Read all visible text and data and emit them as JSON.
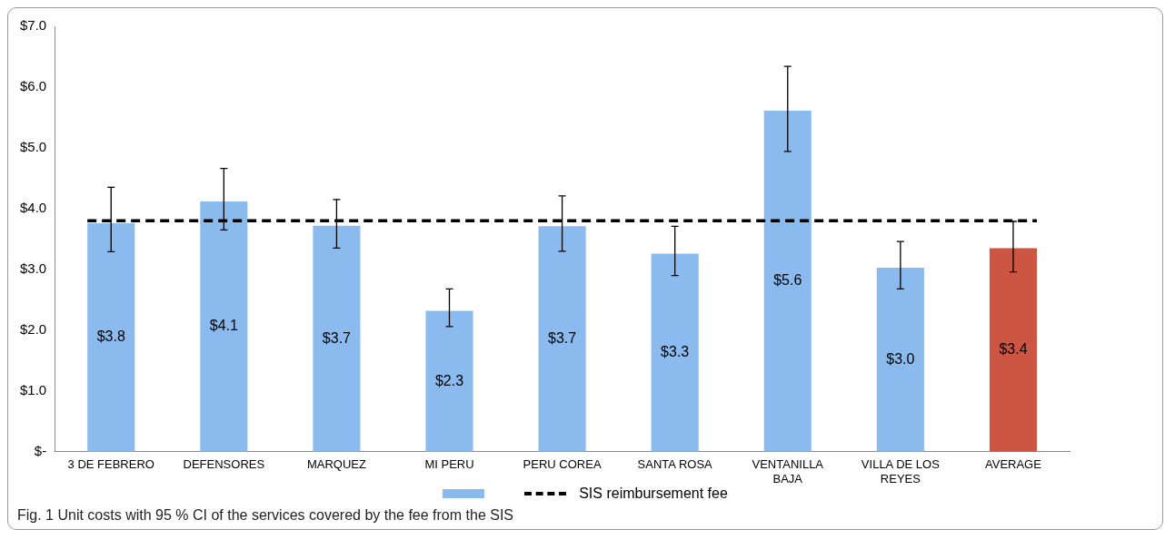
{
  "chart_data": {
    "type": "bar",
    "title": "Fig. 1  Unit costs with 95 % CI of the services covered by the fee from the SIS",
    "categories": [
      "3 DE FEBRERO",
      "DEFENSORES",
      "MARQUEZ",
      "MI PERU",
      "PERU COREA",
      "SANTA ROSA",
      "VENTANILLA BAJA",
      "VILLA DE LOS REYES",
      "AVERAGE"
    ],
    "values": [
      3.76,
      4.12,
      3.72,
      2.32,
      3.71,
      3.26,
      5.61,
      3.03,
      3.35
    ],
    "colors": [
      "#8bbbee",
      "#8bbbee",
      "#8bbbee",
      "#8bbbee",
      "#8bbbee",
      "#8bbbee",
      "#8bbbee",
      "#8bbbee",
      "#cc5544"
    ],
    "value_labels": [
      "$3.8",
      "$4.1",
      "$3.7",
      "$2.3",
      "$3.7",
      "$3.3",
      "$5.6",
      "$3.0",
      "$3.4"
    ],
    "errors": [
      [
        3.29,
        4.35
      ],
      [
        3.65,
        4.66
      ],
      [
        3.35,
        4.15
      ],
      [
        2.06,
        2.68
      ],
      [
        3.3,
        4.21
      ],
      [
        2.9,
        3.71
      ],
      [
        4.94,
        6.34
      ],
      [
        2.68,
        3.46
      ],
      [
        2.96,
        3.79
      ]
    ],
    "ylim": [
      0,
      7
    ],
    "yticks": [
      {
        "value": 0,
        "label": "$-"
      },
      {
        "value": 1,
        "label": "$1.0"
      },
      {
        "value": 2,
        "label": "$2.0"
      },
      {
        "value": 3,
        "label": "$3.0"
      },
      {
        "value": 4,
        "label": "$4.0"
      },
      {
        "value": 5,
        "label": "$5.0"
      },
      {
        "value": 6,
        "label": "$6.0"
      },
      {
        "value": 7,
        "label": "$7.0"
      }
    ],
    "ref_lines": [
      {
        "axis": "y",
        "value": 3.8,
        "label": "SIS reimbursement fee",
        "color": "#000000",
        "line_style": "dashed"
      }
    ],
    "legend": "bottom",
    "grid": false
  }
}
